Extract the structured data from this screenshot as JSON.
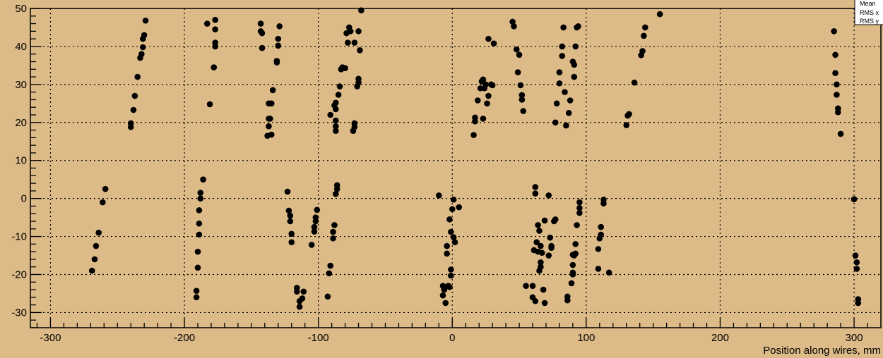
{
  "chart_data": {
    "type": "scatter",
    "title": "",
    "xlabel": "Position along wires, mm",
    "ylabel": "",
    "xlim": [
      -315,
      320
    ],
    "ylim": [
      -34,
      50
    ],
    "x_ticks": [
      -300,
      -200,
      -100,
      0,
      100,
      200,
      300
    ],
    "x_tick_labels": [
      "-300",
      "-200",
      "-100",
      "0",
      "100",
      "200",
      "300"
    ],
    "y_ticks": [
      -30,
      -20,
      -10,
      0,
      10,
      20,
      30,
      40,
      50
    ],
    "y_tick_labels": [
      "-30",
      "-20",
      "-10",
      "0",
      "10",
      "20",
      "30",
      "40",
      "50"
    ],
    "grid": true,
    "stats_box": {
      "lines": [
        "Mean",
        "RMS x",
        "RMS y"
      ]
    },
    "series": [
      {
        "color": "#000000",
        "points": [
          [
            -269,
            -19
          ],
          [
            -267,
            -16
          ],
          [
            -266,
            -12.5
          ],
          [
            -264,
            -9
          ],
          [
            -261,
            -1
          ],
          [
            -259,
            2.5
          ],
          [
            -240,
            18.8
          ],
          [
            -240,
            19.8
          ],
          [
            -238,
            23.3
          ],
          [
            -237,
            27
          ],
          [
            -235,
            32
          ],
          [
            -233,
            37
          ],
          [
            -232,
            38
          ],
          [
            -231,
            39.8
          ],
          [
            -231,
            42
          ],
          [
            -230,
            43
          ],
          [
            -229,
            46.8
          ],
          [
            -191,
            -26
          ],
          [
            -191,
            -24.3
          ],
          [
            -190,
            -18.2
          ],
          [
            -190,
            -14
          ],
          [
            -189,
            -9.5
          ],
          [
            -189,
            -6.6
          ],
          [
            -189,
            -3.1
          ],
          [
            -188,
            0
          ],
          [
            -188,
            1.5
          ],
          [
            -186,
            5
          ],
          [
            -183,
            46
          ],
          [
            -181,
            24.8
          ],
          [
            -178,
            34.5
          ],
          [
            -177,
            40
          ],
          [
            -177,
            41
          ],
          [
            -177,
            44.5
          ],
          [
            -177,
            47
          ],
          [
            -143,
            46
          ],
          [
            -143,
            44
          ],
          [
            -142,
            43.5
          ],
          [
            -142,
            39.6
          ],
          [
            -138,
            16.5
          ],
          [
            -137,
            19
          ],
          [
            -137,
            21
          ],
          [
            -137,
            25
          ],
          [
            -136,
            21
          ],
          [
            -135,
            16.8
          ],
          [
            -135,
            25
          ],
          [
            -134,
            28.5
          ],
          [
            -131,
            35.8
          ],
          [
            -131,
            36.2
          ],
          [
            -130,
            40.2
          ],
          [
            -130,
            42
          ],
          [
            -129,
            45.3
          ],
          [
            -123,
            1.8
          ],
          [
            -122,
            -3.2
          ],
          [
            -121,
            -4.5
          ],
          [
            -121,
            -6
          ],
          [
            -120,
            -9.3
          ],
          [
            -120,
            -11.5
          ],
          [
            -116,
            -23.5
          ],
          [
            -116,
            -24.5
          ],
          [
            -114,
            -27
          ],
          [
            -114,
            -28.5
          ],
          [
            -112,
            -26.3
          ],
          [
            -111,
            -24.5
          ],
          [
            -105,
            -12.2
          ],
          [
            -103,
            -8.7
          ],
          [
            -103,
            -7.5
          ],
          [
            -102,
            -6
          ],
          [
            -102,
            -5
          ],
          [
            -101,
            -3
          ],
          [
            -93,
            -25.8
          ],
          [
            -92,
            -19.7
          ],
          [
            -91,
            -17.7
          ],
          [
            -91,
            22
          ],
          [
            -89,
            -10.5
          ],
          [
            -89,
            -8.8
          ],
          [
            -88,
            -7
          ],
          [
            -88,
            24.5
          ],
          [
            -87,
            17.8
          ],
          [
            -87,
            19
          ],
          [
            -87,
            20.5
          ],
          [
            -87,
            23.5
          ],
          [
            -87,
            25.2
          ],
          [
            -87,
            1.2
          ],
          [
            -86,
            2.5
          ],
          [
            -86,
            3.5
          ],
          [
            -85,
            27.3
          ],
          [
            -84,
            29.5
          ],
          [
            -83,
            34
          ],
          [
            -82,
            34.5
          ],
          [
            -80,
            34.3
          ],
          [
            -79,
            43.5
          ],
          [
            -78,
            41
          ],
          [
            -77,
            45
          ],
          [
            -76,
            44
          ],
          [
            -74,
            17.8
          ],
          [
            -73,
            18.8
          ],
          [
            -73,
            19.8
          ],
          [
            -73,
            41
          ],
          [
            -71,
            29.5
          ],
          [
            -70,
            30.5
          ],
          [
            -70,
            31.5
          ],
          [
            -70,
            44
          ],
          [
            -69,
            39
          ],
          [
            -68,
            49.5
          ],
          [
            -10,
            0.8
          ],
          [
            -7,
            -23
          ],
          [
            -7,
            -25.5
          ],
          [
            -6,
            -24
          ],
          [
            -5,
            -27.5
          ],
          [
            -4,
            -12.5
          ],
          [
            -4,
            -14.5
          ],
          [
            -3,
            -23
          ],
          [
            -2,
            -23.3
          ],
          [
            -2,
            -5.5
          ],
          [
            -1,
            -8.8
          ],
          [
            -1,
            -20.3
          ],
          [
            -1,
            -18.7
          ],
          [
            0,
            -2.8
          ],
          [
            1,
            -0.3
          ],
          [
            1,
            -10.2
          ],
          [
            2,
            -11.5
          ],
          [
            5,
            -2.3
          ],
          [
            16,
            16.7
          ],
          [
            17,
            20.3
          ],
          [
            17,
            21.3
          ],
          [
            19,
            25.8
          ],
          [
            21,
            29
          ],
          [
            22,
            30.8
          ],
          [
            23,
            31.3
          ],
          [
            23,
            21
          ],
          [
            24,
            29
          ],
          [
            25,
            30
          ],
          [
            26,
            25
          ],
          [
            27,
            27
          ],
          [
            27,
            42
          ],
          [
            29,
            30
          ],
          [
            30,
            29.8
          ],
          [
            31,
            40.8
          ],
          [
            45,
            46.5
          ],
          [
            46,
            45.3
          ],
          [
            48,
            39.2
          ],
          [
            49,
            33.2
          ],
          [
            50,
            37.8
          ],
          [
            51,
            29.8
          ],
          [
            52,
            27.2
          ],
          [
            52,
            26
          ],
          [
            53,
            23
          ],
          [
            55,
            -23
          ],
          [
            60,
            -23
          ],
          [
            60,
            -26
          ],
          [
            61,
            -13.6
          ],
          [
            62,
            -27
          ],
          [
            62,
            3
          ],
          [
            62,
            1.3
          ],
          [
            63,
            -11.5
          ],
          [
            64,
            -14
          ],
          [
            64,
            -7
          ],
          [
            65,
            -19
          ],
          [
            65,
            -8.5
          ],
          [
            66,
            -12.5
          ],
          [
            66,
            -16.8
          ],
          [
            66,
            -18
          ],
          [
            67,
            -14.3
          ],
          [
            68,
            -24
          ],
          [
            69,
            -27.5
          ],
          [
            69,
            -5.8
          ],
          [
            72,
            0.8
          ],
          [
            72,
            -15
          ],
          [
            73,
            -10.3
          ],
          [
            74,
            -12.5
          ],
          [
            74,
            -13
          ],
          [
            76,
            -6
          ],
          [
            77,
            -5.5
          ],
          [
            77,
            20
          ],
          [
            78,
            25
          ],
          [
            80,
            30.3
          ],
          [
            80,
            33.2
          ],
          [
            82,
            40
          ],
          [
            82,
            37.5
          ],
          [
            83,
            45
          ],
          [
            84,
            28
          ],
          [
            85,
            19.2
          ],
          [
            86,
            -26.8
          ],
          [
            86,
            -25.8
          ],
          [
            87,
            22.5
          ],
          [
            88,
            25.8
          ],
          [
            89,
            -22.3
          ],
          [
            90,
            -19.5
          ],
          [
            90,
            -17.5
          ],
          [
            90,
            -14.8
          ],
          [
            90,
            -20
          ],
          [
            90,
            36
          ],
          [
            91,
            -15
          ],
          [
            91,
            32
          ],
          [
            91,
            35.2
          ],
          [
            92,
            -14.5
          ],
          [
            92,
            -12
          ],
          [
            92,
            40
          ],
          [
            93,
            -7
          ],
          [
            93,
            45
          ],
          [
            94,
            45.3
          ],
          [
            95,
            -1
          ],
          [
            95,
            -2.5
          ],
          [
            95,
            -3.8
          ],
          [
            109,
            -18.5
          ],
          [
            109,
            -13.3
          ],
          [
            110,
            -10.5
          ],
          [
            111,
            -9.5
          ],
          [
            111,
            -7.5
          ],
          [
            113,
            -0.3
          ],
          [
            113,
            -1.3
          ],
          [
            117,
            -19.5
          ],
          [
            130,
            19.3
          ],
          [
            131,
            21.8
          ],
          [
            132,
            22.2
          ],
          [
            136,
            30.5
          ],
          [
            141,
            37.7
          ],
          [
            142,
            38.8
          ],
          [
            143,
            42.8
          ],
          [
            144,
            45
          ],
          [
            155,
            48.5
          ],
          [
            285,
            44
          ],
          [
            286,
            37.8
          ],
          [
            286,
            33
          ],
          [
            287,
            30
          ],
          [
            287,
            27.3
          ],
          [
            288,
            23.7
          ],
          [
            288,
            22.7
          ],
          [
            290,
            17
          ],
          [
            300,
            -0.2
          ],
          [
            301,
            -15
          ],
          [
            302,
            -16.8
          ],
          [
            302,
            -18.5
          ],
          [
            303,
            -26.5
          ],
          [
            303,
            -27.5
          ]
        ]
      }
    ]
  }
}
